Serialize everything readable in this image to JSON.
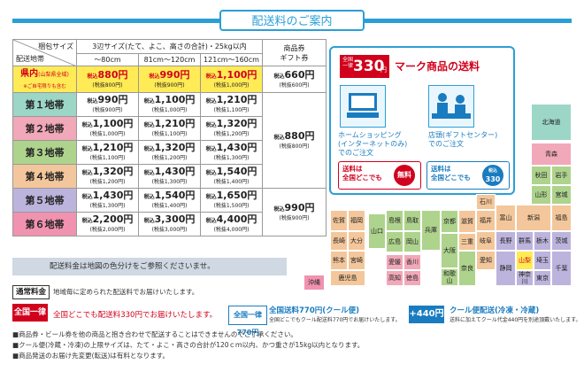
{
  "header": {
    "title": "配送料のご案内"
  },
  "table": {
    "col_size": "梱包サイズ",
    "col_area": "配送地帯",
    "col_span": "3辺サイズ(たて、よこ、高さの合計)・25kg以内",
    "sizes": [
      "〜80cm",
      "81cm〜120cm",
      "121cm〜160cm"
    ],
    "gift_header": "商品券\nギフト券",
    "kennai": {
      "label": "県内",
      "sub": "(山梨県全域)",
      "note": "※ご自宅限りも含む",
      "prices": [
        {
          "v": "880円",
          "s": "(税抜800円)"
        },
        {
          "v": "990円",
          "s": "(税抜900円)"
        },
        {
          "v": "1,100円",
          "s": "(税抜1,000円)"
        }
      ],
      "gift": {
        "v": "660円",
        "s": "(税抜600円)"
      }
    },
    "tax_prefix": "税込",
    "rows": [
      {
        "zone": "第１地帯",
        "prices": [
          {
            "v": "990円",
            "s": "(税抜900円)"
          },
          {
            "v": "1,100円",
            "s": "(税抜1,000円)"
          },
          {
            "v": "1,210円",
            "s": "(税抜1,100円)"
          }
        ]
      },
      {
        "zone": "第２地帯",
        "prices": [
          {
            "v": "1,100円",
            "s": "(税抜1,000円)"
          },
          {
            "v": "1,210円",
            "s": "(税抜1,100円)"
          },
          {
            "v": "1,320円",
            "s": "(税抜1,200円)"
          }
        ]
      },
      {
        "zone": "第３地帯",
        "prices": [
          {
            "v": "1,210円",
            "s": "(税抜1,100円)"
          },
          {
            "v": "1,320円",
            "s": "(税抜1,200円)"
          },
          {
            "v": "1,430円",
            "s": "(税抜1,300円)"
          }
        ]
      },
      {
        "zone": "第４地帯",
        "prices": [
          {
            "v": "1,320円",
            "s": "(税抜1,200円)"
          },
          {
            "v": "1,430円",
            "s": "(税抜1,300円)"
          },
          {
            "v": "1,540円",
            "s": "(税抜1,400円)"
          }
        ]
      },
      {
        "zone": "第５地帯",
        "prices": [
          {
            "v": "1,430円",
            "s": "(税抜1,300円)"
          },
          {
            "v": "1,540円",
            "s": "(税抜1,400円)"
          },
          {
            "v": "1,650円",
            "s": "(税抜1,500円)"
          }
        ]
      },
      {
        "zone": "第６地帯",
        "prices": [
          {
            "v": "2,200円",
            "s": "(税抜2,000円)"
          },
          {
            "v": "3,300円",
            "s": "(税抜3,000円)"
          },
          {
            "v": "4,400円",
            "s": "(税抜4,000円)"
          }
        ]
      }
    ],
    "gift_mid": {
      "v": "880円",
      "s": "(税抜800円)"
    },
    "gift_low": {
      "v": "990円",
      "s": "(税抜900円)"
    }
  },
  "notes": {
    "map_note": "配送料金は地図の色分けをご参照くださいませ。",
    "normal_label": "通常料金",
    "normal_text": "地域毎に定められた配送料でお届けいたします。",
    "flat_badge": "全国一律330円",
    "flat_text": "全国どこでも配送料330円でお届けいたします。",
    "cool_badge": "全国一律770円",
    "cool_title": "全国送料770円(クール便)",
    "cool_text": "全国どこでもクール配送料770円でお届けいたします。",
    "plus_badge": "+440円",
    "cool2_title": "クール便配送(冷凍・冷蔵)",
    "cool2_text": "送料に加えてクール代金440円を別途頂戴いたします。",
    "bullets": [
      "■商品券・ビール券を他の商品と抱き合わせで配送することはできませんのでご了承ください。",
      "■クール便(冷蔵・冷凍)の上限サイズは、たて・よこ・高さの合計が120ｃｍ以内、かつ重さが15kg以内となります。",
      "■商品発送のお届け先変更(転送)は有料となります。"
    ]
  },
  "promo": {
    "badge_top": "全国一律",
    "badge_price": "330",
    "badge_unit": "円",
    "title": "マーク商品の送料",
    "home_title": "ホームショッピング\n(インターネットのみ)\nでのご注文",
    "store_title": "店頭(ギフトセンター)\nでのご注文",
    "home_tag": "送料は\n全国どこでも",
    "home_free": "無料",
    "store_tag": "送料は\n全国どこでも",
    "store_price": "330",
    "store_price_top": "税込"
  },
  "map": {
    "hokkaido": "北海道",
    "aomori": "青森",
    "akita": "秋田",
    "iwate": "岩手",
    "yamagata": "山形",
    "miyagi": "宮城",
    "niigata": "新潟",
    "fukushima": "福島",
    "ishikawa": "石川",
    "toyama": "富山",
    "nagano": "長野",
    "gunma": "群馬",
    "tochigi": "栃木",
    "ibaraki": "茨城",
    "yamanashi": "山梨",
    "saitama": "埼玉",
    "chiba": "千葉",
    "tokyo": "東京",
    "kanagawa": "神奈川",
    "shizuoka": "静岡",
    "gifu": "岐阜",
    "aichi": "愛知",
    "fukui": "福井",
    "shiga": "滋賀",
    "kyoto": "京都",
    "mie": "三重",
    "nara": "奈良",
    "osaka": "大阪",
    "wakayama": "和歌山",
    "hyogo": "兵庫",
    "tottori": "鳥取",
    "shimane": "島根",
    "okayama": "岡山",
    "hiroshima": "広島",
    "yamaguchi": "山口",
    "kagawa": "香川",
    "tokushima": "徳島",
    "ehime": "愛媛",
    "kochi": "高知",
    "fukuoka": "福岡",
    "saga": "佐賀",
    "nagasaki": "長崎",
    "oita": "大分",
    "kumamoto": "熊本",
    "miyazaki": "宮崎",
    "kagoshima": "鹿児島",
    "okinawa": "沖縄"
  },
  "colors": {
    "accent": "#2a9fd6",
    "red": "#d1001c",
    "zone1": "#9cd6c7",
    "zone2": "#f1a8b8",
    "zone3": "#aed38d",
    "zone4": "#f3c79b",
    "zone5": "#bcb4dc",
    "zone6": "#f092b0",
    "kennai": "#ffeb55"
  }
}
